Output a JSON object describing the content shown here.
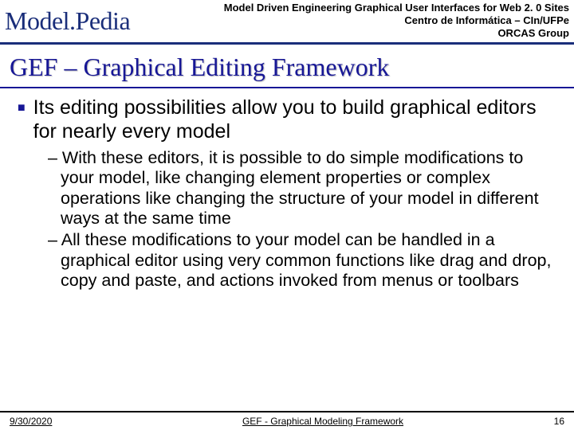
{
  "header": {
    "top_line": "Model Driven Engineering Graphical User Interfaces for Web 2. 0 Sites",
    "logo": "Model.Pedia",
    "right_line1": "Centro de Informática – CIn/UFPe",
    "right_line2": "ORCAS Group"
  },
  "title": "GEF – Graphical Editing Framework",
  "bullet": {
    "text": "Its editing possibilities allow you to build graphical editors for nearly every model"
  },
  "sub_items": [
    "– With these editors, it is possible to do simple modifications to your model, like changing element properties or complex operations like changing the structure of your model in different ways at the same time",
    "– All these modifications to your model can be handled in a graphical editor using very common functions like drag and drop, copy and paste, and actions invoked from menus or toolbars"
  ],
  "footer": {
    "date": "9/30/2020",
    "center": "GEF - Graphical Modeling Framework",
    "page": "16"
  },
  "colors": {
    "brand_blue": "#1a2e7a",
    "title_blue": "#171796"
  }
}
